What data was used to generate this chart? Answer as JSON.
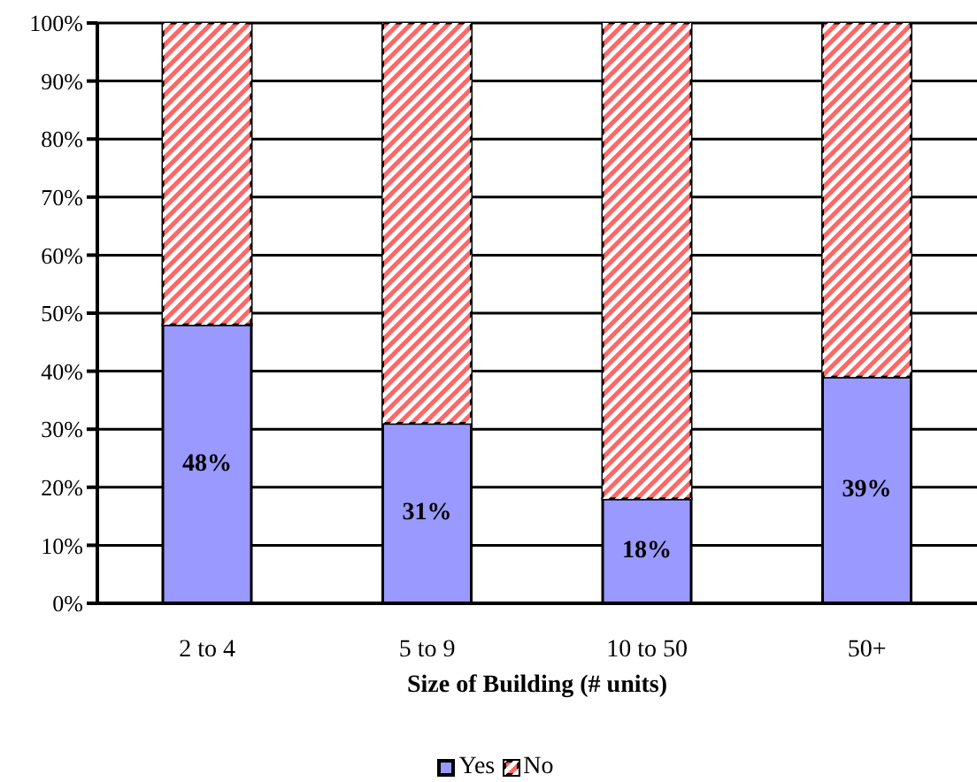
{
  "chart_data": {
    "type": "bar",
    "stacked": true,
    "xlabel": "Size of Building (# units)",
    "categories": [
      "2 to 4",
      "5 to 9",
      "10 to 50",
      "50+"
    ],
    "series": [
      {
        "name": "Yes",
        "color": "#9999ff",
        "values": [
          48,
          31,
          18,
          39
        ],
        "value_labels": [
          "48%",
          "31%",
          "18%",
          "39%"
        ]
      },
      {
        "name": "No",
        "color": "#ff6666",
        "values": [
          52,
          69,
          82,
          61
        ]
      }
    ],
    "ylim": [
      0,
      100
    ],
    "yticks": [
      {
        "value": 0,
        "label": "0%"
      },
      {
        "value": 10,
        "label": "10%"
      },
      {
        "value": 20,
        "label": "20%"
      },
      {
        "value": 30,
        "label": "30%"
      },
      {
        "value": 40,
        "label": "40%"
      },
      {
        "value": 50,
        "label": "50%"
      },
      {
        "value": 60,
        "label": "60%"
      },
      {
        "value": 70,
        "label": "70%"
      },
      {
        "value": 80,
        "label": "80%"
      },
      {
        "value": 90,
        "label": "90%"
      },
      {
        "value": 100,
        "label": "100%"
      }
    ],
    "grid": "y",
    "legend": "bottom"
  }
}
